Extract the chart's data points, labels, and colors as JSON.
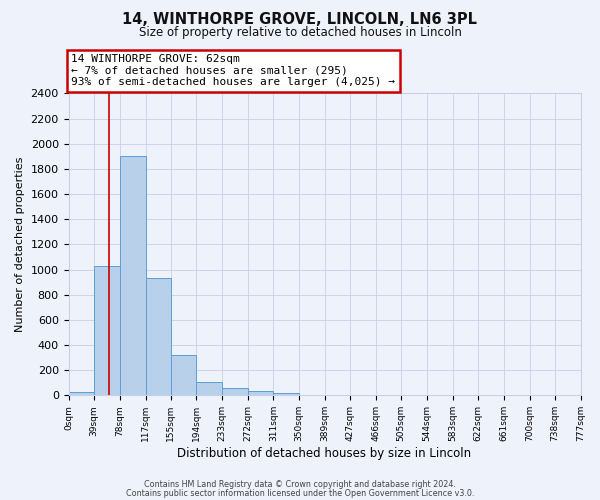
{
  "title": "14, WINTHORPE GROVE, LINCOLN, LN6 3PL",
  "subtitle": "Size of property relative to detached houses in Lincoln",
  "xlabel": "Distribution of detached houses by size in Lincoln",
  "ylabel": "Number of detached properties",
  "bin_edges": [
    0,
    39,
    78,
    117,
    155,
    194,
    233,
    272,
    311,
    350,
    389,
    427,
    466,
    505,
    544,
    583,
    622,
    661,
    700,
    738,
    777
  ],
  "bin_labels": [
    "0sqm",
    "39sqm",
    "78sqm",
    "117sqm",
    "155sqm",
    "194sqm",
    "233sqm",
    "272sqm",
    "311sqm",
    "350sqm",
    "389sqm",
    "427sqm",
    "466sqm",
    "505sqm",
    "544sqm",
    "583sqm",
    "622sqm",
    "661sqm",
    "700sqm",
    "738sqm",
    "777sqm"
  ],
  "counts": [
    25,
    1025,
    1900,
    930,
    320,
    110,
    55,
    35,
    20,
    0,
    0,
    0,
    0,
    0,
    0,
    0,
    0,
    0,
    0,
    0
  ],
  "bar_color": "#b8d0ea",
  "bar_edge_color": "#5a9fd4",
  "red_line_x": 62,
  "ylim": [
    0,
    2400
  ],
  "yticks": [
    0,
    200,
    400,
    600,
    800,
    1000,
    1200,
    1400,
    1600,
    1800,
    2000,
    2200,
    2400
  ],
  "annotation_line1": "14 WINTHORPE GROVE: 62sqm",
  "annotation_line2": "← 7% of detached houses are smaller (295)",
  "annotation_line3": "93% of semi-detached houses are larger (4,025) →",
  "annotation_box_edge_color": "#cc0000",
  "annotation_box_bg": "#ffffff",
  "background_color": "#eef2fb",
  "grid_color": "#c8d0e8",
  "footer_line1": "Contains HM Land Registry data © Crown copyright and database right 2024.",
  "footer_line2": "Contains public sector information licensed under the Open Government Licence v3.0."
}
